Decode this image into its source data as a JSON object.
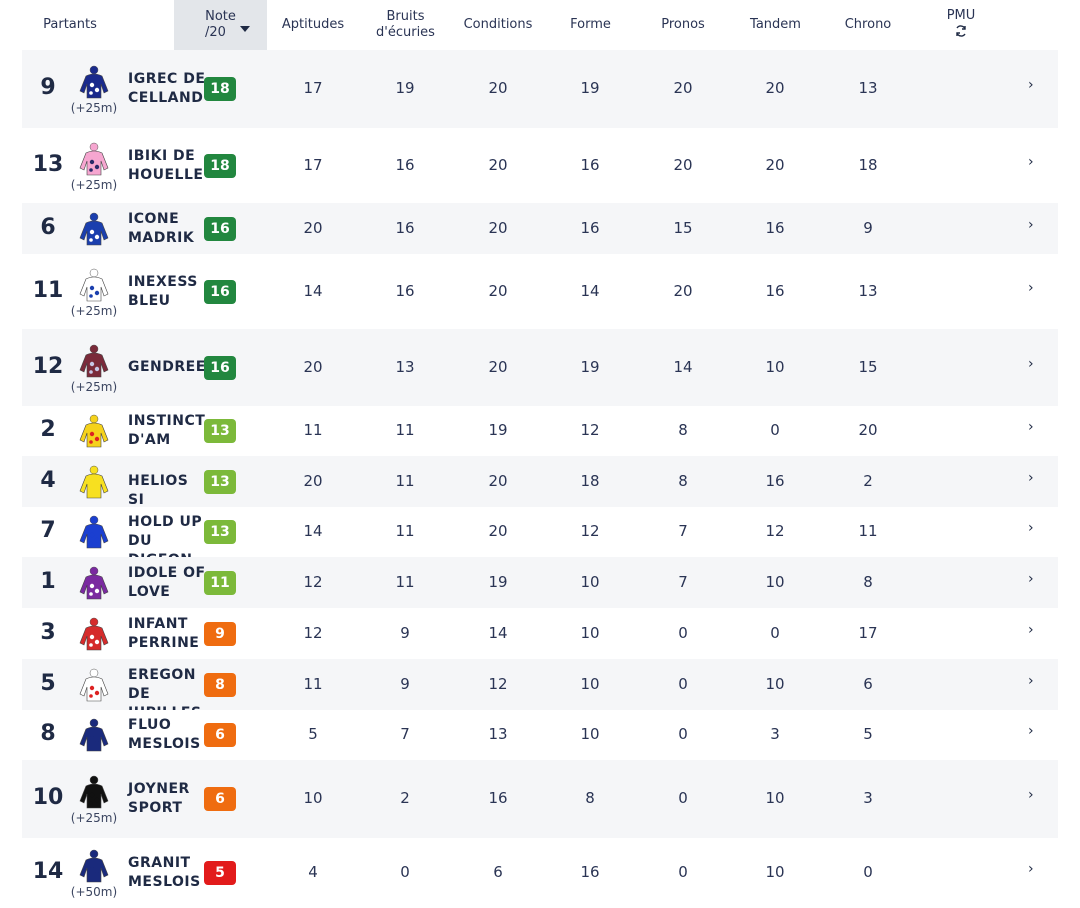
{
  "header": {
    "partants": "Partants",
    "note": "Note",
    "note_sub": "/20",
    "aptitudes": "Aptitudes",
    "bruits": "Bruits",
    "bruits_sub": "d'écuries",
    "conditions": "Conditions",
    "forme": "Forme",
    "pronos": "Pronos",
    "tandem": "Tandem",
    "chrono": "Chrono",
    "pmu": "PMU"
  },
  "colors": {
    "green_dark": "#22873f",
    "green_light": "#7cb93a",
    "orange": "#ef6c10",
    "red": "#e21b1b"
  },
  "rows": [
    {
      "num": "9",
      "name": "IGREC DE CELLAND",
      "handicap": "(+25m)",
      "note": "18",
      "aptitudes": "17",
      "bruits": "19",
      "conditions": "20",
      "forme": "19",
      "pronos": "20",
      "tandem": "20",
      "chrono": "13",
      "silk": "navy-polka",
      "color": "#22873f"
    },
    {
      "num": "13",
      "name": "IBIKI DE HOUELLE",
      "handicap": "(+25m)",
      "note": "18",
      "aptitudes": "17",
      "bruits": "16",
      "conditions": "20",
      "forme": "16",
      "pronos": "20",
      "tandem": "20",
      "chrono": "18",
      "silk": "pink-band",
      "color": "#22873f"
    },
    {
      "num": "6",
      "name": "ICONE MADRIK",
      "handicap": "",
      "note": "16",
      "aptitudes": "20",
      "bruits": "16",
      "conditions": "20",
      "forme": "16",
      "pronos": "15",
      "tandem": "16",
      "chrono": "9",
      "silk": "blue-white-sleeves",
      "color": "#22873f"
    },
    {
      "num": "11",
      "name": "INEXESS BLEU",
      "handicap": "(+25m)",
      "note": "16",
      "aptitudes": "14",
      "bruits": "16",
      "conditions": "20",
      "forme": "14",
      "pronos": "20",
      "tandem": "16",
      "chrono": "13",
      "silk": "blue-stripes",
      "color": "#22873f"
    },
    {
      "num": "12",
      "name": "GENDREEN",
      "handicap": "(+25m)",
      "note": "16",
      "aptitudes": "20",
      "bruits": "13",
      "conditions": "20",
      "forme": "19",
      "pronos": "14",
      "tandem": "10",
      "chrono": "15",
      "silk": "maroon-star",
      "color": "#22873f"
    },
    {
      "num": "2",
      "name": "INSTINCT D'AM",
      "handicap": "",
      "note": "13",
      "aptitudes": "11",
      "bruits": "11",
      "conditions": "19",
      "forme": "12",
      "pronos": "8",
      "tandem": "0",
      "chrono": "20",
      "silk": "yellow-red",
      "color": "#7cb93a"
    },
    {
      "num": "4",
      "name": "HELIOS SI",
      "handicap": "",
      "note": "13",
      "aptitudes": "20",
      "bruits": "11",
      "conditions": "20",
      "forme": "18",
      "pronos": "8",
      "tandem": "16",
      "chrono": "2",
      "silk": "yellow",
      "color": "#7cb93a"
    },
    {
      "num": "7",
      "name": "HOLD UP DU DIGEON",
      "handicap": "",
      "note": "13",
      "aptitudes": "14",
      "bruits": "11",
      "conditions": "20",
      "forme": "12",
      "pronos": "7",
      "tandem": "12",
      "chrono": "11",
      "silk": "blue",
      "color": "#7cb93a"
    },
    {
      "num": "1",
      "name": "IDOLE OF LOVE",
      "handicap": "",
      "note": "11",
      "aptitudes": "12",
      "bruits": "11",
      "conditions": "19",
      "forme": "10",
      "pronos": "7",
      "tandem": "10",
      "chrono": "8",
      "silk": "purple-stars",
      "color": "#7cb93a"
    },
    {
      "num": "3",
      "name": "INFANT PERRINE",
      "handicap": "",
      "note": "9",
      "aptitudes": "12",
      "bruits": "9",
      "conditions": "14",
      "forme": "10",
      "pronos": "0",
      "tandem": "0",
      "chrono": "17",
      "silk": "red-chevrons",
      "color": "#ef6c10"
    },
    {
      "num": "5",
      "name": "EREGON DE JUPILLES",
      "handicap": "",
      "note": "8",
      "aptitudes": "11",
      "bruits": "9",
      "conditions": "12",
      "forme": "10",
      "pronos": "0",
      "tandem": "10",
      "chrono": "6",
      "silk": "white-red-star",
      "color": "#ef6c10"
    },
    {
      "num": "8",
      "name": "FLUO MESLOIS",
      "handicap": "",
      "note": "6",
      "aptitudes": "5",
      "bruits": "7",
      "conditions": "13",
      "forme": "10",
      "pronos": "0",
      "tandem": "3",
      "chrono": "5",
      "silk": "navy",
      "color": "#ef6c10"
    },
    {
      "num": "10",
      "name": "JOYNER SPORT",
      "handicap": "(+25m)",
      "note": "6",
      "aptitudes": "10",
      "bruits": "2",
      "conditions": "16",
      "forme": "8",
      "pronos": "0",
      "tandem": "10",
      "chrono": "3",
      "silk": "black",
      "color": "#ef6c10"
    },
    {
      "num": "14",
      "name": "GRANIT MESLOIS",
      "handicap": "(+50m)",
      "note": "5",
      "aptitudes": "4",
      "bruits": "0",
      "conditions": "6",
      "forme": "16",
      "pronos": "0",
      "tandem": "10",
      "chrono": "0",
      "silk": "navy",
      "color": "#e21b1b"
    }
  ]
}
